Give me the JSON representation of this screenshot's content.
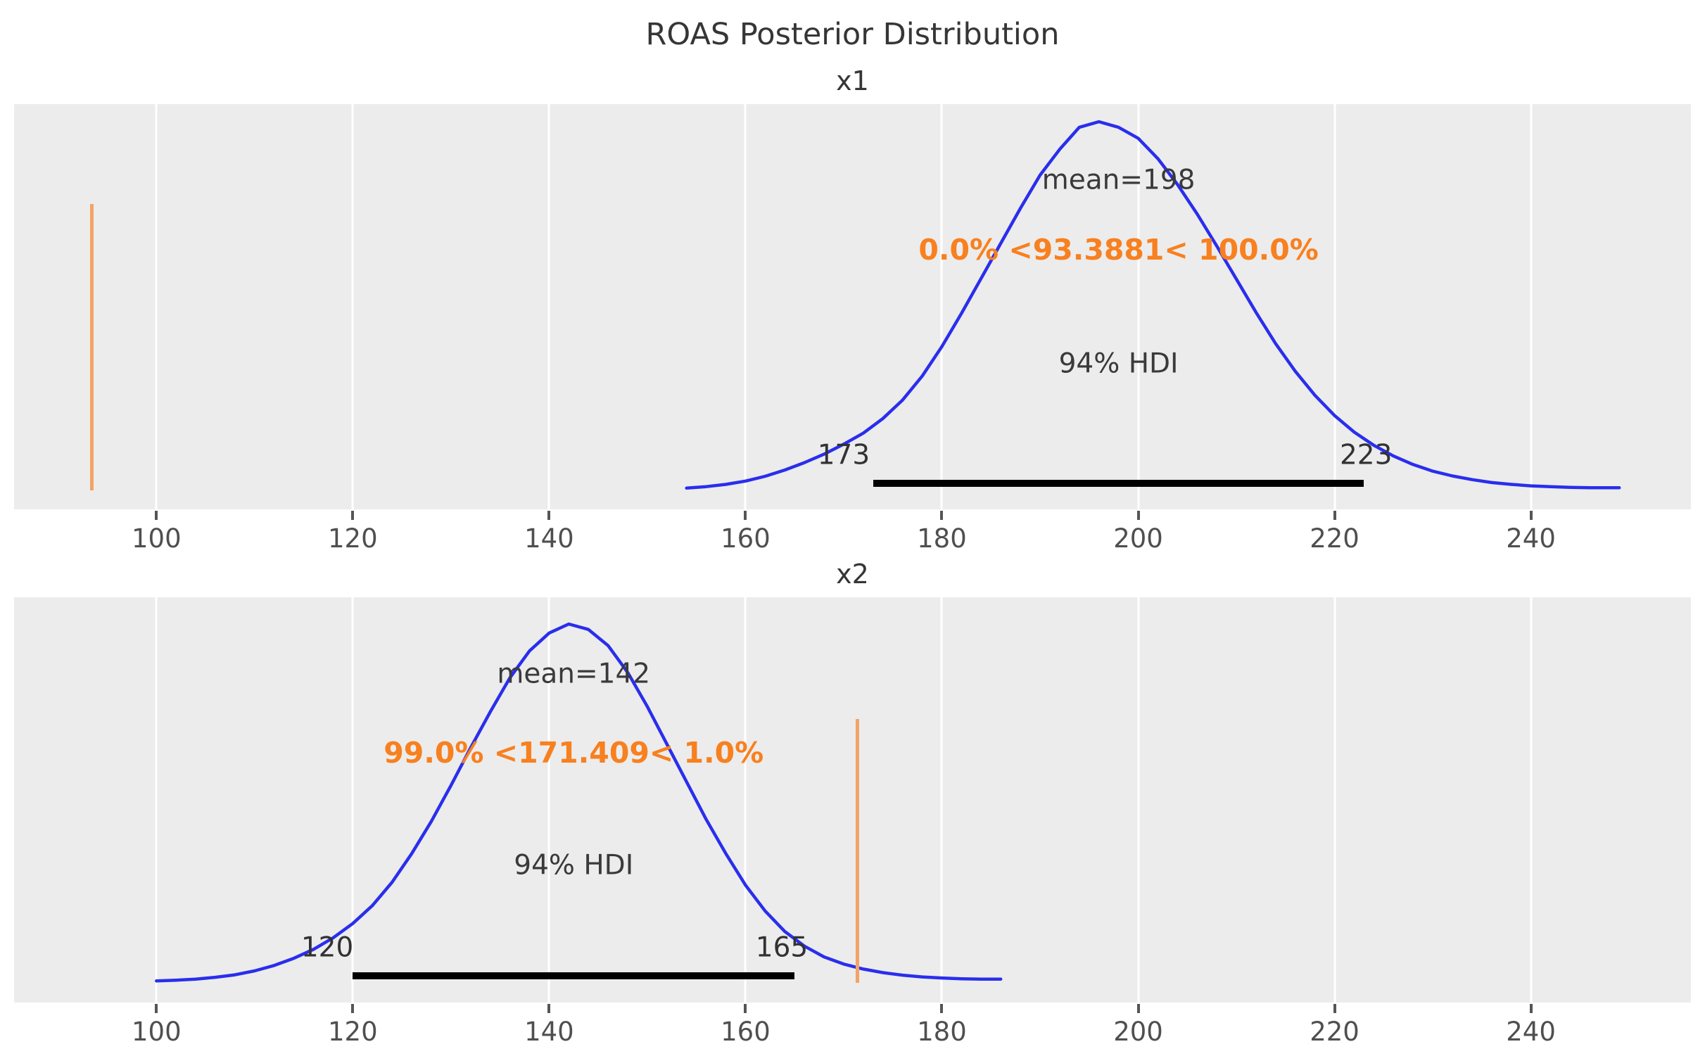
{
  "figure": {
    "title": "ROAS Posterior Distribution",
    "background_color": "#ffffff",
    "panel_background_color": "#ececec",
    "curve_color": "#2a2eec",
    "ref_line_color": "#f2a466",
    "ref_text_color": "#f8801f",
    "hdi_bar_color": "#000000",
    "gridline_color": "#ffffff"
  },
  "chart_data": [
    {
      "type": "area",
      "name": "x1",
      "mean": 198,
      "mean_label": "mean=198",
      "ref_val": 93.3881,
      "ref_val_label": "0.0% <93.3881< 100.0%",
      "percent_below_ref": 0.0,
      "percent_above_ref": 100.0,
      "hdi_probability": "94%",
      "hdi_label": "94% HDI",
      "hdi_lower": 173,
      "hdi_upper": 223,
      "hdi_lower_label": "173",
      "hdi_upper_label": "223",
      "x_ticks": [
        100,
        120,
        140,
        160,
        180,
        200,
        220,
        240
      ],
      "xlim": [
        85.5,
        256.3
      ],
      "grid": "vertical-only",
      "kde_x": [
        154,
        156,
        158,
        160,
        162,
        164,
        166,
        168,
        170,
        172,
        174,
        176,
        178,
        180,
        182,
        184,
        186,
        188,
        190,
        192,
        194,
        196,
        198,
        200,
        202,
        204,
        206,
        208,
        210,
        212,
        214,
        216,
        218,
        220,
        222,
        224,
        226,
        228,
        230,
        232,
        234,
        236,
        238,
        240,
        242,
        244,
        246,
        248,
        249
      ],
      "kde_h": [
        0.006,
        0.01,
        0.016,
        0.025,
        0.038,
        0.055,
        0.075,
        0.098,
        0.125,
        0.155,
        0.195,
        0.245,
        0.31,
        0.39,
        0.48,
        0.575,
        0.67,
        0.765,
        0.855,
        0.925,
        0.985,
        1.0,
        0.985,
        0.955,
        0.9,
        0.83,
        0.75,
        0.663,
        0.573,
        0.483,
        0.398,
        0.323,
        0.258,
        0.203,
        0.158,
        0.122,
        0.093,
        0.07,
        0.052,
        0.039,
        0.029,
        0.021,
        0.016,
        0.012,
        0.01,
        0.008,
        0.007,
        0.007,
        0.007
      ],
      "pos": {
        "baseline_frac": 0.953,
        "peak_frac": 0.0434,
        "hdi_bar_frac": 0.927,
        "ref_line_top_frac": 0.247,
        "ref_line_bottom_frac": 0.953,
        "center_value": 198,
        "mean_y_frac": 0.1875,
        "ref_text_y_frac": 0.359,
        "hdi_text_y_frac": 0.641,
        "hdi_label_y_frac": 0.866,
        "hdi_lower_label_value": 170.0,
        "hdi_upper_label_value": 223.2
      }
    },
    {
      "type": "area",
      "name": "x2",
      "mean": 142,
      "mean_label": "mean=142",
      "ref_val": 171.409,
      "ref_val_label": "99.0% <171.409< 1.0%",
      "percent_below_ref": 99.0,
      "percent_above_ref": 1.0,
      "hdi_probability": "94%",
      "hdi_label": "94% HDI",
      "hdi_lower": 120,
      "hdi_upper": 165,
      "hdi_lower_label": "120",
      "hdi_upper_label": "165",
      "x_ticks": [
        100,
        120,
        140,
        160,
        180,
        200,
        220,
        240
      ],
      "xlim": [
        85.5,
        256.3
      ],
      "grid": "vertical-only",
      "kde_x": [
        100,
        102,
        104,
        106,
        108,
        110,
        112,
        114,
        116,
        118,
        120,
        122,
        124,
        126,
        128,
        130,
        132,
        134,
        136,
        138,
        140,
        142,
        144,
        146,
        148,
        150,
        152,
        154,
        156,
        158,
        160,
        162,
        164,
        166,
        168,
        170,
        172,
        174,
        176,
        178,
        180,
        182,
        184,
        186
      ],
      "kde_h": [
        0.005,
        0.007,
        0.01,
        0.015,
        0.022,
        0.033,
        0.048,
        0.068,
        0.093,
        0.125,
        0.165,
        0.215,
        0.28,
        0.36,
        0.45,
        0.55,
        0.655,
        0.755,
        0.85,
        0.925,
        0.975,
        1.0,
        0.985,
        0.94,
        0.865,
        0.77,
        0.665,
        0.56,
        0.455,
        0.36,
        0.272,
        0.2,
        0.143,
        0.102,
        0.072,
        0.052,
        0.038,
        0.028,
        0.021,
        0.016,
        0.013,
        0.011,
        0.01,
        0.01
      ],
      "pos": {
        "baseline_frac": 0.951,
        "peak_frac": 0.066,
        "hdi_bar_frac": 0.925,
        "ref_line_top_frac": 0.3,
        "ref_line_bottom_frac": 0.951,
        "center_value": 142.5,
        "mean_y_frac": 0.189,
        "ref_text_y_frac": 0.384,
        "hdi_text_y_frac": 0.661,
        "hdi_label_y_frac": 0.865,
        "hdi_lower_label_value": 117.4,
        "hdi_upper_label_value": 163.7
      }
    }
  ]
}
